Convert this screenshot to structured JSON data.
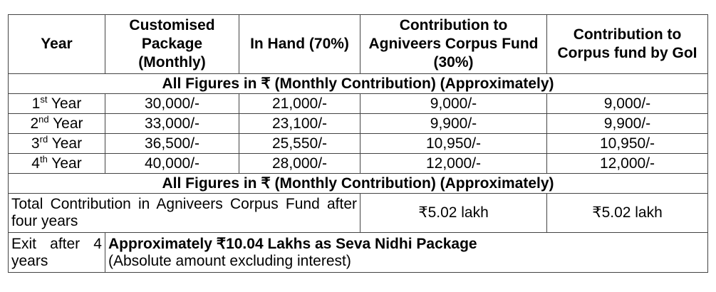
{
  "headers": [
    "Year",
    "Customised Package (Monthly)",
    "In Hand (70%)",
    "Contribution to Agniveers Corpus Fund (30%)",
    "Contribution to Corpus fund by GoI"
  ],
  "band_1": "All  Figures in ₹ (Monthly Contribution) (Approximately)",
  "band_2": "All  Figures in ₹ (Monthly Contribution) (Approximately)",
  "rows": [
    {
      "year_num": "1",
      "year_sup": "st",
      "year_word": " Year",
      "package": "30,000/-",
      "in_hand": "21,000/-",
      "corpus": "9,000/-",
      "goi": "9,000/-"
    },
    {
      "year_num": "2",
      "year_sup": "nd",
      "year_word": " Year",
      "package": "33,000/-",
      "in_hand": "23,100/-",
      "corpus": "9,900/-",
      "goi": "9,900/-"
    },
    {
      "year_num": "3",
      "year_sup": "rd",
      "year_word": " Year",
      "package": "36,500/-",
      "in_hand": "25,550/-",
      "corpus": "10,950/-",
      "goi": "10,950/-"
    },
    {
      "year_num": "4",
      "year_sup": "th",
      "year_word": " Year",
      "package": "40,000/-",
      "in_hand": "28,000/-",
      "corpus": "12,000/-",
      "goi": "12,000/-"
    }
  ],
  "total": {
    "label": "Total Contribution in Agniveers Corpus Fund after four years",
    "corpus": "₹5.02 lakh",
    "goi": "₹5.02 lakh"
  },
  "exit": {
    "label": "Exit after 4 years",
    "headline": "Approximately ₹10.04 Lakhs as Seva Nidhi Package",
    "note": "(Absolute amount excluding interest)"
  }
}
